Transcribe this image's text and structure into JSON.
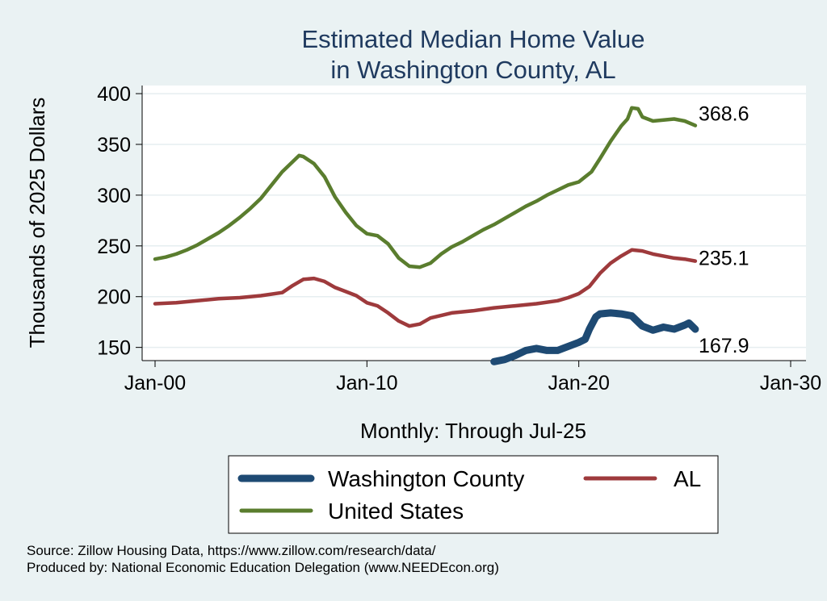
{
  "chart_data": {
    "type": "line",
    "title": [
      "Estimated Median Home Value",
      "in Washington County, AL"
    ],
    "xlabel": "Monthly: Through Jul-25",
    "ylabel": "Thousands of 2025 Dollars",
    "x_ticks": [
      {
        "label": "Jan-00",
        "value": 2000
      },
      {
        "label": "Jan-10",
        "value": 2010
      },
      {
        "label": "Jan-20",
        "value": 2020
      },
      {
        "label": "Jan-30",
        "value": 2030
      }
    ],
    "y_ticks": [
      150,
      200,
      250,
      300,
      350,
      400
    ],
    "xlim": [
      2000,
      2030
    ],
    "ylim": [
      137,
      408
    ],
    "grid": true,
    "legend_position": "bottom",
    "series": [
      {
        "name": "United States",
        "color": "#5a7d2e",
        "end_label": "368.6",
        "points": [
          [
            2000.0,
            237
          ],
          [
            2000.5,
            239
          ],
          [
            2001.0,
            242
          ],
          [
            2001.5,
            246
          ],
          [
            2002.0,
            251
          ],
          [
            2002.5,
            257
          ],
          [
            2003.0,
            263
          ],
          [
            2003.5,
            270
          ],
          [
            2004.0,
            278
          ],
          [
            2004.5,
            287
          ],
          [
            2005.0,
            297
          ],
          [
            2005.5,
            310
          ],
          [
            2006.0,
            323
          ],
          [
            2006.5,
            333
          ],
          [
            2006.8,
            339
          ],
          [
            2007.0,
            338
          ],
          [
            2007.5,
            331
          ],
          [
            2008.0,
            318
          ],
          [
            2008.5,
            298
          ],
          [
            2009.0,
            283
          ],
          [
            2009.5,
            270
          ],
          [
            2010.0,
            262
          ],
          [
            2010.5,
            260
          ],
          [
            2011.0,
            252
          ],
          [
            2011.5,
            238
          ],
          [
            2012.0,
            230
          ],
          [
            2012.5,
            229
          ],
          [
            2013.0,
            233
          ],
          [
            2013.5,
            242
          ],
          [
            2014.0,
            249
          ],
          [
            2014.5,
            254
          ],
          [
            2015.0,
            260
          ],
          [
            2015.5,
            266
          ],
          [
            2016.0,
            271
          ],
          [
            2016.5,
            277
          ],
          [
            2017.0,
            283
          ],
          [
            2017.5,
            289
          ],
          [
            2018.0,
            294
          ],
          [
            2018.5,
            300
          ],
          [
            2019.0,
            305
          ],
          [
            2019.5,
            310
          ],
          [
            2020.0,
            313
          ],
          [
            2020.3,
            318
          ],
          [
            2020.6,
            323
          ],
          [
            2021.0,
            336
          ],
          [
            2021.5,
            353
          ],
          [
            2022.0,
            368
          ],
          [
            2022.3,
            375
          ],
          [
            2022.5,
            386
          ],
          [
            2022.8,
            385
          ],
          [
            2023.0,
            377
          ],
          [
            2023.5,
            373
          ],
          [
            2024.0,
            374
          ],
          [
            2024.5,
            375
          ],
          [
            2025.0,
            373
          ],
          [
            2025.5,
            368.6
          ]
        ]
      },
      {
        "name": "AL",
        "color": "#9e3a3c",
        "end_label": "235.1",
        "points": [
          [
            2000.0,
            193
          ],
          [
            2001.0,
            194
          ],
          [
            2002.0,
            196
          ],
          [
            2003.0,
            198
          ],
          [
            2004.0,
            199
          ],
          [
            2005.0,
            201
          ],
          [
            2006.0,
            204
          ],
          [
            2006.5,
            211
          ],
          [
            2007.0,
            217
          ],
          [
            2007.5,
            218
          ],
          [
            2008.0,
            215
          ],
          [
            2008.5,
            209
          ],
          [
            2009.0,
            205
          ],
          [
            2009.5,
            201
          ],
          [
            2010.0,
            194
          ],
          [
            2010.5,
            191
          ],
          [
            2011.0,
            184
          ],
          [
            2011.5,
            176
          ],
          [
            2012.0,
            171
          ],
          [
            2012.5,
            173
          ],
          [
            2013.0,
            179
          ],
          [
            2014.0,
            184
          ],
          [
            2015.0,
            186
          ],
          [
            2016.0,
            189
          ],
          [
            2017.0,
            191
          ],
          [
            2018.0,
            193
          ],
          [
            2019.0,
            196
          ],
          [
            2019.5,
            199
          ],
          [
            2020.0,
            203
          ],
          [
            2020.5,
            210
          ],
          [
            2021.0,
            223
          ],
          [
            2021.5,
            233
          ],
          [
            2022.0,
            240
          ],
          [
            2022.5,
            246
          ],
          [
            2023.0,
            245
          ],
          [
            2023.5,
            242
          ],
          [
            2024.0,
            240
          ],
          [
            2024.5,
            238
          ],
          [
            2025.0,
            237
          ],
          [
            2025.5,
            235.1
          ]
        ]
      },
      {
        "name": "Washington County",
        "color": "#1e4a73",
        "end_label": "167.9",
        "points": [
          [
            2016.0,
            136
          ],
          [
            2016.5,
            138
          ],
          [
            2017.0,
            142
          ],
          [
            2017.5,
            147
          ],
          [
            2018.0,
            149
          ],
          [
            2018.5,
            147
          ],
          [
            2019.0,
            147
          ],
          [
            2019.5,
            151
          ],
          [
            2020.0,
            155
          ],
          [
            2020.3,
            158
          ],
          [
            2020.5,
            168
          ],
          [
            2020.8,
            180
          ],
          [
            2021.0,
            183
          ],
          [
            2021.5,
            184
          ],
          [
            2022.0,
            183
          ],
          [
            2022.5,
            181
          ],
          [
            2023.0,
            171
          ],
          [
            2023.5,
            167
          ],
          [
            2024.0,
            170
          ],
          [
            2024.5,
            168
          ],
          [
            2025.0,
            172
          ],
          [
            2025.2,
            174
          ],
          [
            2025.5,
            167.9
          ]
        ]
      }
    ]
  },
  "legend": [
    {
      "label": "Washington County",
      "color": "#1e4a73"
    },
    {
      "label": "AL",
      "color": "#9e3a3c"
    },
    {
      "label": "United States",
      "color": "#5a7d2e"
    }
  ],
  "footer": {
    "source": "Source: Zillow Housing Data, https://www.zillow.com/research/data/",
    "producer": "Produced by: National Economic Education Delegation (www.NEEDEcon.org)"
  }
}
